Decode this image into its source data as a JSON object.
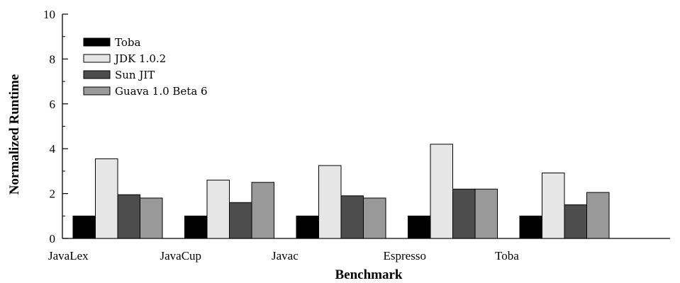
{
  "chart_data": {
    "type": "bar",
    "title": "",
    "xlabel": "Benchmark",
    "ylabel": "Normalized Runtime",
    "ylim": [
      0,
      10
    ],
    "yticks": [
      "0",
      "2",
      "4",
      "6",
      "8",
      "10"
    ],
    "categories": [
      "JavaLex",
      "JavaCup",
      "Javac",
      "Espresso",
      "Toba"
    ],
    "series": [
      {
        "name": "Toba",
        "color": "#000000",
        "values": [
          1.0,
          1.0,
          1.0,
          1.0,
          1.0
        ]
      },
      {
        "name": "JDK 1.0.2",
        "color": "#e6e6e6",
        "values": [
          3.55,
          2.6,
          3.25,
          4.2,
          2.92
        ]
      },
      {
        "name": "Sun JIT",
        "color": "#4d4d4d",
        "values": [
          1.95,
          1.6,
          1.9,
          2.2,
          1.5
        ]
      },
      {
        "name": "Guava 1.0 Beta 6",
        "color": "#999999",
        "values": [
          1.8,
          2.5,
          1.8,
          2.2,
          2.05
        ]
      }
    ],
    "grid": false,
    "legend_position": "top-left"
  }
}
